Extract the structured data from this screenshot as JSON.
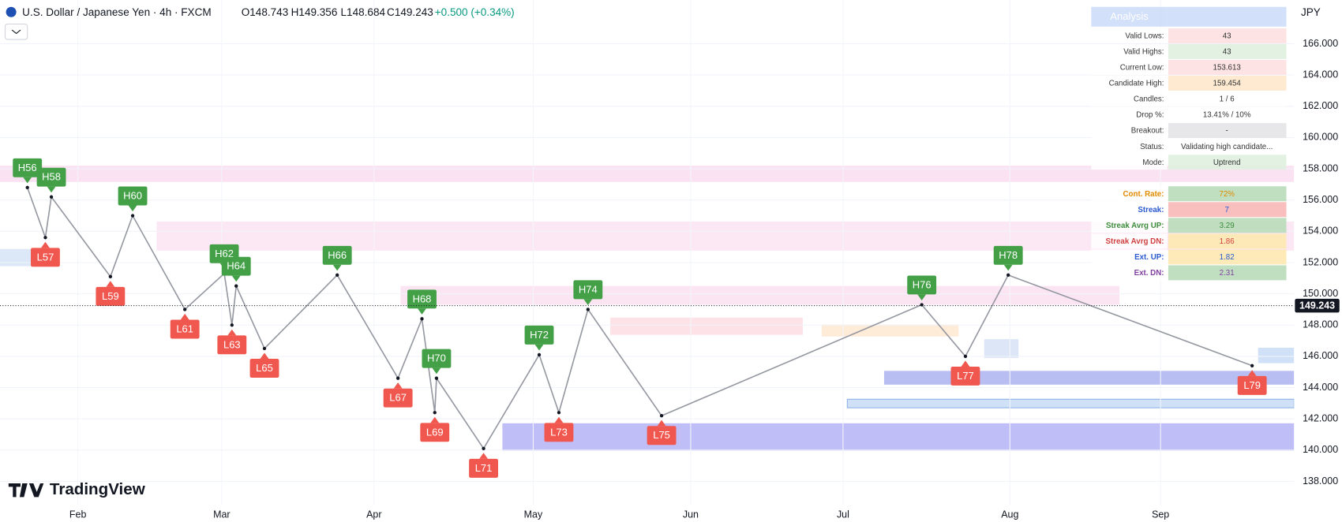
{
  "header": {
    "title": "U.S. Dollar / Japanese Yen · 4h · FXCM",
    "ohlc": [
      "O148.743",
      "H149.356",
      "L148.684",
      "C149.243"
    ],
    "change": "+0.500 (+0.34%)",
    "currency": "JPY"
  },
  "branding": "TradingView",
  "chart_data": {
    "type": "line",
    "color": "#9598a1",
    "categories": [
      "H56",
      "L57",
      "H58",
      "L59",
      "H60",
      "L61",
      "H62",
      "L63",
      "H64",
      "L65",
      "H66",
      "L67",
      "H68",
      "L69",
      "H70",
      "L71",
      "H72",
      "L73",
      "H74",
      "L75",
      "H76",
      "L77",
      "H78",
      "L79"
    ],
    "values": [
      156.8,
      153.6,
      156.2,
      151.1,
      155.0,
      149.0,
      151.3,
      148.0,
      150.5,
      146.5,
      151.2,
      144.6,
      148.4,
      142.4,
      144.6,
      140.1,
      146.1,
      142.4,
      149.0,
      142.2,
      149.3,
      146.0,
      151.2,
      145.4
    ],
    "ylim": [
      135.4,
      168.8
    ],
    "yticks": [
      {
        "value": 138,
        "label": "138.000"
      },
      {
        "value": 140,
        "label": "140.000"
      },
      {
        "value": 142,
        "label": "142.000"
      },
      {
        "value": 144,
        "label": "144.000"
      },
      {
        "value": 146,
        "label": "146.000"
      },
      {
        "value": 148,
        "label": "148.000"
      },
      {
        "value": 150,
        "label": "150.000"
      },
      {
        "value": 152,
        "label": "152.000"
      },
      {
        "value": 154,
        "label": "154.000"
      },
      {
        "value": 156,
        "label": "156.000"
      },
      {
        "value": 158,
        "label": "158.000"
      },
      {
        "value": 160,
        "label": "160.000"
      },
      {
        "value": 162,
        "label": "162.000"
      },
      {
        "value": 164,
        "label": "164.000"
      },
      {
        "value": 166,
        "label": "166.000"
      }
    ],
    "x_labels": [
      "Feb",
      "Mar",
      "Apr",
      "May",
      "Jun",
      "Jul",
      "Aug",
      "Sep"
    ],
    "last_price": {
      "value": 149.243,
      "label": "149.243"
    },
    "grid": true
  },
  "analysis": {
    "title": "Analysis",
    "rows": [
      [
        "Valid Lows:",
        "43"
      ],
      [
        "Valid Highs:",
        "43"
      ],
      [
        "Current Low:",
        "153.613"
      ],
      [
        "Candidate High:",
        "159.454"
      ],
      [
        "Candles:",
        "1 / 6"
      ],
      [
        "Drop %:",
        "13.41% / 10%"
      ],
      [
        "Breakout:",
        "-"
      ],
      [
        "Status:",
        "Validating high candidate..."
      ],
      [
        "Mode:",
        "Uptrend"
      ],
      [
        "Cont. Rate:",
        "72%"
      ],
      [
        "Streak:",
        "7"
      ],
      [
        "Streak Avrg UP:",
        "3.29"
      ],
      [
        "Streak Avrg DN:",
        "1.86"
      ],
      [
        "Ext. UP:",
        "1.82"
      ],
      [
        "Ext. DN:",
        "2.31"
      ]
    ]
  }
}
